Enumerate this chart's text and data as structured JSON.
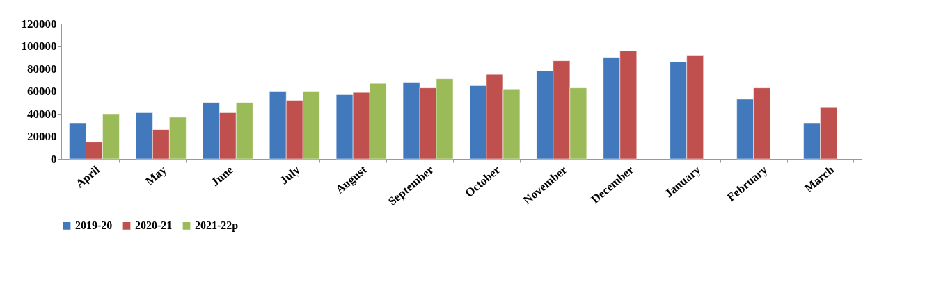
{
  "chart_data": {
    "type": "bar",
    "categories": [
      "April",
      "May",
      "June",
      "July",
      "August",
      "September",
      "October",
      "November",
      "December",
      "January",
      "February",
      "March"
    ],
    "series": [
      {
        "name": "2019-20",
        "color": "#4279bd",
        "values": [
          32000,
          41000,
          50000,
          60000,
          57000,
          68000,
          65000,
          78000,
          90000,
          86000,
          53000,
          32000
        ]
      },
      {
        "name": "2020-21",
        "color": "#c0504d",
        "values": [
          15000,
          26000,
          41000,
          52000,
          59000,
          63000,
          75000,
          87000,
          96000,
          92000,
          63000,
          46000
        ]
      },
      {
        "name": "2021-22p",
        "color": "#9bbb59",
        "values": [
          40000,
          37000,
          50000,
          60000,
          67000,
          71000,
          62000,
          63000,
          null,
          null,
          null,
          null
        ]
      }
    ],
    "ylim": [
      0,
      120000
    ],
    "yticks": [
      0,
      20000,
      40000,
      60000,
      80000,
      100000,
      120000
    ],
    "grid": false,
    "legend": "bottom"
  }
}
